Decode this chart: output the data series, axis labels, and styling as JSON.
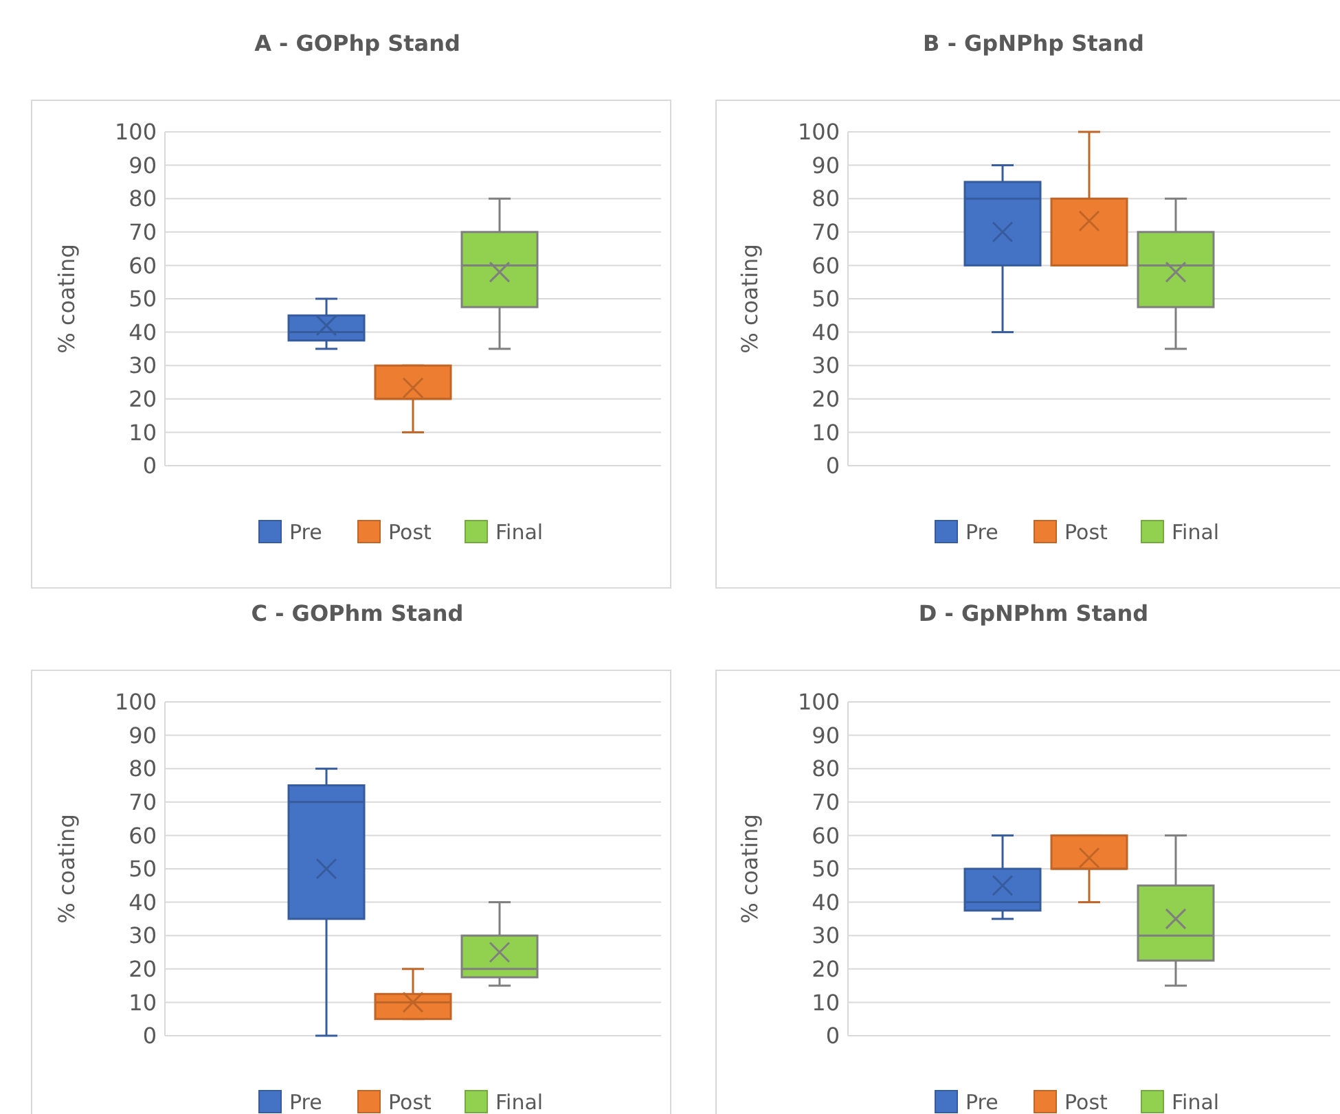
{
  "chart_data": [
    {
      "type": "box",
      "title": "A - GOPhp Stand",
      "ylabel": "% coating",
      "categories": [
        null
      ],
      "ylim": [
        0,
        100
      ],
      "yticks": [
        0,
        10,
        20,
        30,
        40,
        50,
        60,
        70,
        80,
        90,
        100
      ],
      "grid": "y",
      "legend": "bottom",
      "series": [
        {
          "name": "Pre",
          "color": "#4472c4",
          "boxes": [
            {
              "low": 35,
              "q1": 37.5,
              "median": 40,
              "q3": 45,
              "high": 50,
              "mean": 42
            }
          ]
        },
        {
          "name": "Post",
          "color": "#ed7d31",
          "boxes": [
            {
              "low": 10,
              "q1": 20,
              "median": 20,
              "q3": 30,
              "high": 30,
              "mean": 23.3
            }
          ]
        },
        {
          "name": "Final",
          "color": "#92d050",
          "boxes": [
            {
              "low": 35,
              "q1": 47.5,
              "median": 60,
              "q3": 70,
              "high": 80,
              "mean": 58
            }
          ]
        }
      ]
    },
    {
      "type": "box",
      "title": "B - GpNPhp Stand",
      "ylabel": "% coating",
      "categories": [
        null
      ],
      "ylim": [
        0,
        100
      ],
      "yticks": [
        0,
        10,
        20,
        30,
        40,
        50,
        60,
        70,
        80,
        90,
        100
      ],
      "grid": "y",
      "legend": "bottom",
      "series": [
        {
          "name": "Pre",
          "color": "#4472c4",
          "boxes": [
            {
              "low": 40,
              "q1": 60,
              "median": 80,
              "q3": 85,
              "high": 90,
              "mean": 70
            }
          ]
        },
        {
          "name": "Post",
          "color": "#ed7d31",
          "boxes": [
            {
              "low": 60,
              "q1": 60,
              "median": 60,
              "q3": 80,
              "high": 100,
              "mean": 73.3
            }
          ]
        },
        {
          "name": "Final",
          "color": "#92d050",
          "boxes": [
            {
              "low": 35,
              "q1": 47.5,
              "median": 60,
              "q3": 70,
              "high": 80,
              "mean": 58
            }
          ]
        }
      ]
    },
    {
      "type": "box",
      "title": "C - GOPhm Stand",
      "ylabel": "% coating",
      "categories": [
        null
      ],
      "ylim": [
        0,
        100
      ],
      "yticks": [
        0,
        10,
        20,
        30,
        40,
        50,
        60,
        70,
        80,
        90,
        100
      ],
      "grid": "y",
      "legend": "bottom",
      "series": [
        {
          "name": "Pre",
          "color": "#4472c4",
          "boxes": [
            {
              "low": 0,
              "q1": 35,
              "median": 70,
              "q3": 75,
              "high": 80,
              "mean": 50
            }
          ]
        },
        {
          "name": "Post",
          "color": "#ed7d31",
          "boxes": [
            {
              "low": 5,
              "q1": 5,
              "median": 10,
              "q3": 12.5,
              "high": 20,
              "mean": 10
            }
          ]
        },
        {
          "name": "Final",
          "color": "#92d050",
          "boxes": [
            {
              "low": 15,
              "q1": 17.5,
              "median": 20,
              "q3": 30,
              "high": 40,
              "mean": 25
            }
          ]
        }
      ]
    },
    {
      "type": "box",
      "title": "D - GpNPhm Stand",
      "ylabel": "% coating",
      "categories": [
        null
      ],
      "ylim": [
        0,
        100
      ],
      "yticks": [
        0,
        10,
        20,
        30,
        40,
        50,
        60,
        70,
        80,
        90,
        100
      ],
      "grid": "y",
      "legend": "bottom",
      "series": [
        {
          "name": "Pre",
          "color": "#4472c4",
          "boxes": [
            {
              "low": 35,
              "q1": 37.5,
              "median": 40,
              "q3": 50,
              "high": 60,
              "mean": 45
            }
          ]
        },
        {
          "name": "Post",
          "color": "#ed7d31",
          "boxes": [
            {
              "low": 40,
              "q1": 50,
              "median": 50,
              "q3": 60,
              "high": 60,
              "mean": 53.3
            }
          ]
        },
        {
          "name": "Final",
          "color": "#92d050",
          "boxes": [
            {
              "low": 15,
              "q1": 22.5,
              "median": 30,
              "q3": 45,
              "high": 60,
              "mean": 35
            }
          ]
        }
      ]
    }
  ]
}
